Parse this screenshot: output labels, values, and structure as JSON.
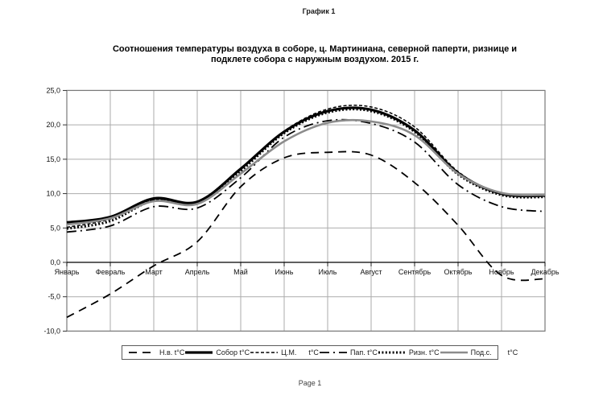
{
  "page": {
    "header_label": "График 1",
    "title_line1": "Соотношения температуры воздуха в соборе, ц. Мартиниана, северной паперти, ризнице и",
    "title_line2": "подклете собора с наружным воздухом. 2015 г.",
    "footer_label": "Page 1"
  },
  "chart_data": {
    "type": "line",
    "smoothed": true,
    "title": "Соотношения температуры воздуха в соборе, ц. Мартиниана, северной паперти, ризнице и подклете собора с наружным воздухом. 2015 г.",
    "categories": [
      "Январь",
      "Февраль",
      "Март",
      "Апрель",
      "Май",
      "Июнь",
      "Июль",
      "Август",
      "Сентябрь",
      "Октябрь",
      "Ноябрь",
      "Декабрь"
    ],
    "y_axis": {
      "min": -10,
      "max": 25,
      "step": 5,
      "tick_labels": [
        "25,0",
        "20,0",
        "15,0",
        "10,0",
        "5,0",
        "0,0",
        "-5,0",
        "-10,0"
      ],
      "decimal_separator": ","
    },
    "grid": true,
    "legend_position": "bottom",
    "draw_order": [
      1,
      2,
      4,
      3,
      0,
      5
    ],
    "palette": {
      "grid_line": "#ababab",
      "plot_border": "#7a7a7a",
      "zero_axis": "#000000",
      "black_series": "#000000",
      "gray_series": "#8c8c8c"
    },
    "series": [
      {
        "name": "Н.в. t°C",
        "legend_label": "Н.в. t°C",
        "color": "#000000",
        "stroke_width": 1.8,
        "dash": "10 7",
        "values": [
          -8.0,
          -4.6,
          -0.5,
          3.0,
          11.0,
          15.2,
          16.0,
          15.6,
          11.6,
          5.4,
          -1.9,
          -2.4
        ]
      },
      {
        "name": "Собор t°C",
        "legend_label": "Собор t°C",
        "color": "#000000",
        "stroke_width": 3.2,
        "dash": "",
        "values": [
          5.8,
          6.6,
          9.3,
          8.8,
          13.6,
          19.0,
          22.0,
          22.2,
          19.2,
          13.0,
          10.0,
          9.7
        ]
      },
      {
        "name": "Ц.М. t°C",
        "legend_label": "Ц.М.      t°C",
        "color": "#000000",
        "stroke_width": 1.5,
        "dash": "4 2.5",
        "values": [
          5.1,
          6.3,
          9.1,
          8.7,
          13.5,
          19.1,
          22.3,
          22.6,
          19.7,
          13.2,
          9.9,
          9.6
        ]
      },
      {
        "name": "Пап. t°C",
        "legend_label": "Пап. t°C",
        "color": "#000000",
        "stroke_width": 1.8,
        "dash": "12 5 2 5",
        "values": [
          4.4,
          5.3,
          8.1,
          7.9,
          12.3,
          18.2,
          20.6,
          20.2,
          17.5,
          11.3,
          8.1,
          7.4
        ]
      },
      {
        "name": "Ризн. t°C",
        "legend_label": "Ризн. t°C",
        "color": "#000000",
        "stroke_width": 3.0,
        "dash": "2 2.4",
        "values": [
          4.9,
          6.0,
          9.0,
          8.6,
          13.3,
          18.8,
          21.8,
          22.0,
          19.0,
          12.8,
          9.8,
          9.5
        ]
      },
      {
        "name": "Под.с. t°C",
        "legend_label": "Под.с.        t°C",
        "color": "#8c8c8c",
        "stroke_width": 2.6,
        "dash": "",
        "values": [
          5.5,
          6.4,
          8.9,
          8.5,
          12.9,
          17.6,
          20.3,
          20.5,
          18.5,
          12.9,
          10.1,
          9.8
        ]
      }
    ]
  }
}
